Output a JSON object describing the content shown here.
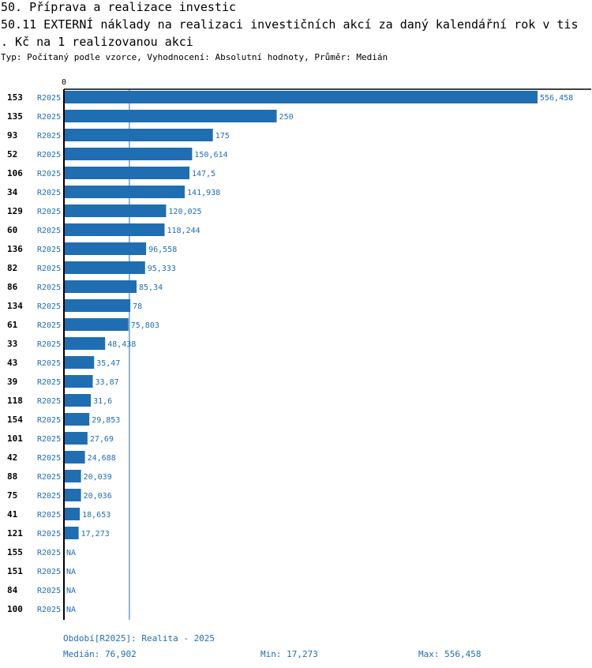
{
  "header": {
    "title_line1": "50. Příprava a realizace investic",
    "title_line2": "50.11 EXTERNÍ náklady na realizaci investičních akcí za daný kalendářní rok v tis",
    "title_line3": ". Kč na 1 realizovanou akci",
    "subtitle": "Typ: Počítaný podle vzorce, Vyhodnocení: Absolutní hodnoty, Průměr: Medián"
  },
  "colors": {
    "bar": "#1f6eb2",
    "label": "#1f6eb2",
    "axis": "#000000"
  },
  "chart_data": {
    "type": "bar",
    "orientation": "horizontal",
    "axis_zero_label": "0",
    "xlim": [
      0,
      556.458
    ],
    "median_line": 76.902,
    "rows": [
      {
        "id": "153",
        "period": "R2025",
        "value": 556.458,
        "label": "556,458"
      },
      {
        "id": "135",
        "period": "R2025",
        "value": 250,
        "label": "250"
      },
      {
        "id": "93",
        "period": "R2025",
        "value": 175,
        "label": "175"
      },
      {
        "id": "52",
        "period": "R2025",
        "value": 150.614,
        "label": "150,614"
      },
      {
        "id": "106",
        "period": "R2025",
        "value": 147.5,
        "label": "147,5"
      },
      {
        "id": "34",
        "period": "R2025",
        "value": 141.938,
        "label": "141,938"
      },
      {
        "id": "129",
        "period": "R2025",
        "value": 120.025,
        "label": "120,025"
      },
      {
        "id": "60",
        "period": "R2025",
        "value": 118.244,
        "label": "118,244"
      },
      {
        "id": "136",
        "period": "R2025",
        "value": 96.558,
        "label": "96,558"
      },
      {
        "id": "82",
        "period": "R2025",
        "value": 95.333,
        "label": "95,333"
      },
      {
        "id": "86",
        "period": "R2025",
        "value": 85.34,
        "label": "85,34"
      },
      {
        "id": "134",
        "period": "R2025",
        "value": 78,
        "label": "78"
      },
      {
        "id": "61",
        "period": "R2025",
        "value": 75.803,
        "label": "75,803"
      },
      {
        "id": "33",
        "period": "R2025",
        "value": 48.438,
        "label": "48,438"
      },
      {
        "id": "43",
        "period": "R2025",
        "value": 35.47,
        "label": "35,47"
      },
      {
        "id": "39",
        "period": "R2025",
        "value": 33.87,
        "label": "33,87"
      },
      {
        "id": "118",
        "period": "R2025",
        "value": 31.6,
        "label": "31,6"
      },
      {
        "id": "154",
        "period": "R2025",
        "value": 29.853,
        "label": "29,853"
      },
      {
        "id": "101",
        "period": "R2025",
        "value": 27.69,
        "label": "27,69"
      },
      {
        "id": "42",
        "period": "R2025",
        "value": 24.688,
        "label": "24,688"
      },
      {
        "id": "88",
        "period": "R2025",
        "value": 20.039,
        "label": "20,039"
      },
      {
        "id": "75",
        "period": "R2025",
        "value": 20.036,
        "label": "20,036"
      },
      {
        "id": "41",
        "period": "R2025",
        "value": 18.653,
        "label": "18,653"
      },
      {
        "id": "121",
        "period": "R2025",
        "value": 17.273,
        "label": "17,273"
      },
      {
        "id": "155",
        "period": "R2025",
        "value": null,
        "label": "NA"
      },
      {
        "id": "151",
        "period": "R2025",
        "value": null,
        "label": "NA"
      },
      {
        "id": "84",
        "period": "R2025",
        "value": null,
        "label": "NA"
      },
      {
        "id": "100",
        "period": "R2025",
        "value": null,
        "label": "NA"
      }
    ]
  },
  "footer": {
    "period_legend": "Období[R2025]: Realita - 2025",
    "median": "Medián: 76,902",
    "min": "Min: 17,273",
    "max": "Max: 556,458"
  }
}
